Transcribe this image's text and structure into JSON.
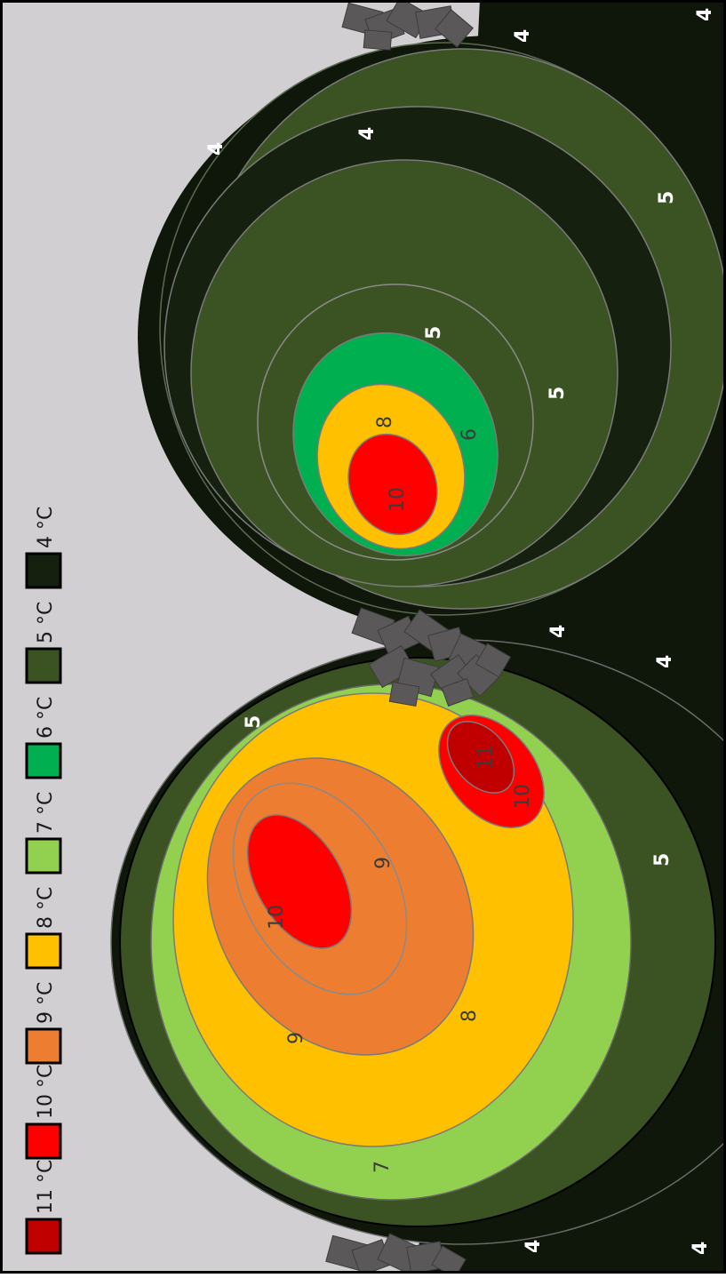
{
  "legend": {
    "items": [
      {
        "label": "11 °C",
        "color": "#c00000"
      },
      {
        "label": "10 °C",
        "color": "#ff0000"
      },
      {
        "label": "9 °C",
        "color": "#ed7d31"
      },
      {
        "label": "8 °C",
        "color": "#ffc000"
      },
      {
        "label": "7 °C",
        "color": "#92d050"
      },
      {
        "label": "6 °C",
        "color": "#00b050"
      },
      {
        "label": "5 °C",
        "color": "#3b5323"
      },
      {
        "label": "4 °C",
        "color": "#15200f"
      }
    ]
  },
  "contour_labels": {
    "top_right_4": "4",
    "top_right_4b": "4",
    "right_4_upper": "4",
    "right_4_mid": "4",
    "right_5_a": "5",
    "right_5_b": "5",
    "right_5_c": "5",
    "right_8": "8",
    "right_6": "6",
    "right_10": "10",
    "mid_4_a": "4",
    "mid_4_b": "4",
    "left_5_top": "5",
    "left_5_bottom": "5",
    "left_9_a": "9",
    "left_9_b": "9",
    "left_10": "10",
    "left_8": "8",
    "left_7": "7",
    "small_11": "11",
    "small_10": "10",
    "bottom_4_a": "4",
    "bottom_4_b": "4"
  },
  "colors": {
    "background": "#d1cfd1",
    "frame": "#000000",
    "stone": "#5a5858",
    "contour_line": "#8a8a8a"
  }
}
